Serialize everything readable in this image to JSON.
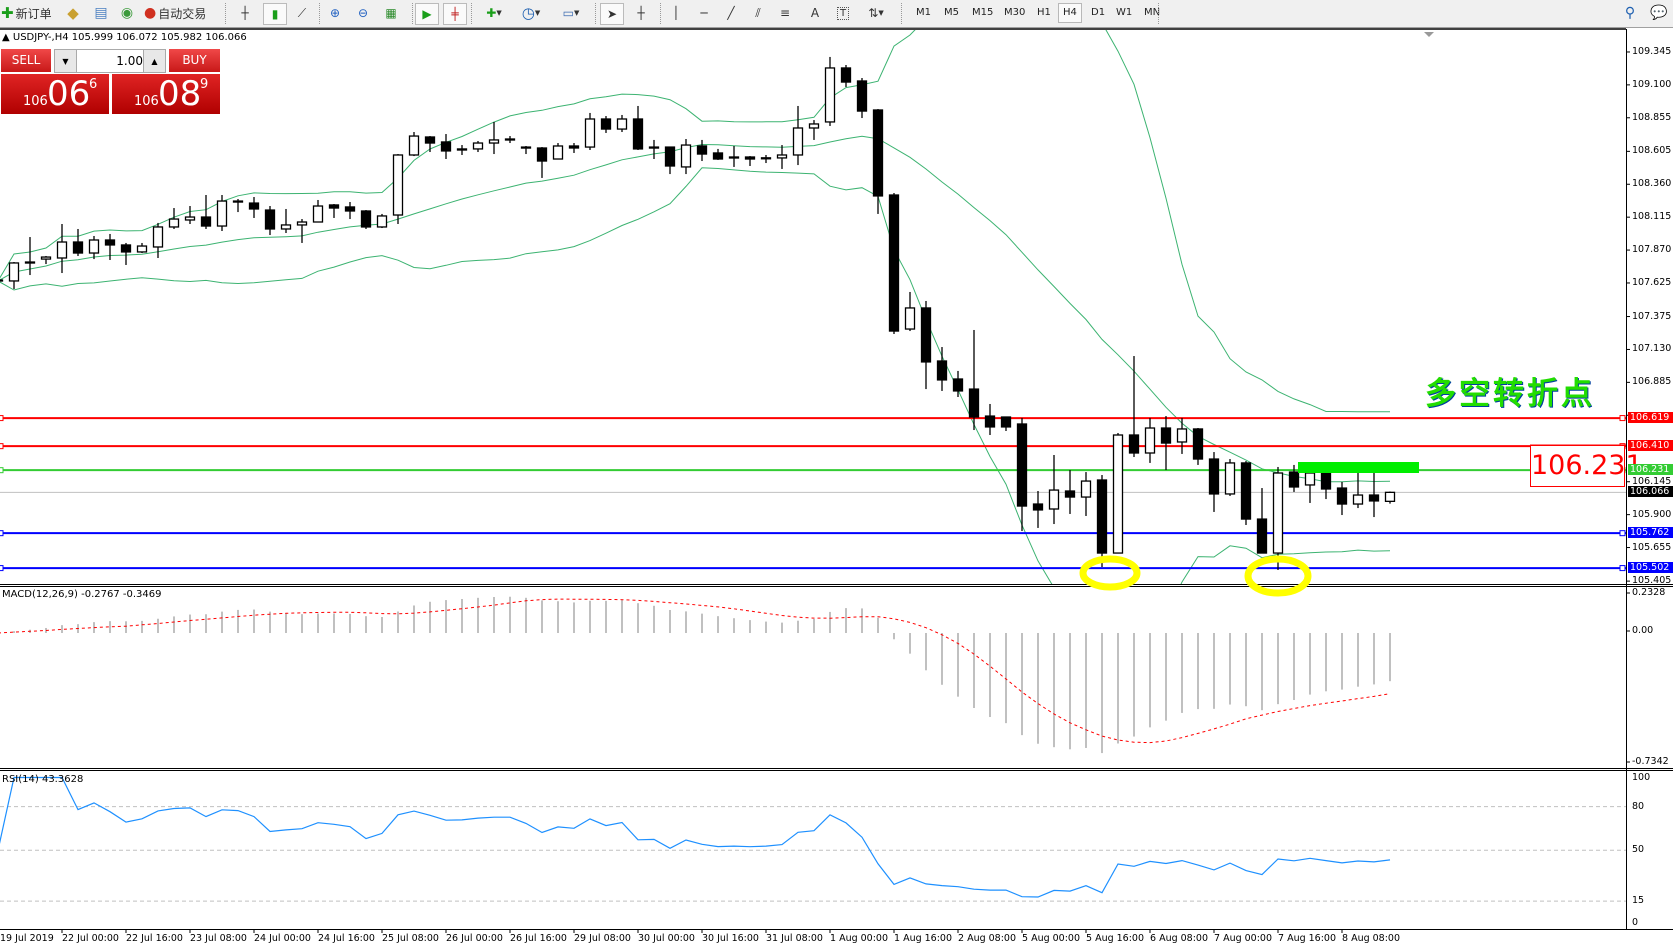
{
  "toolbar": {
    "new_order": "新订单",
    "auto_trading": "自动交易",
    "icons": [
      "new-order-icon",
      "market-watch-icon",
      "data-window-icon",
      "navigator-icon",
      "auto-trading-icon",
      "bar-chart-icon",
      "candlestick-icon",
      "line-chart-icon",
      "zoom-in-icon",
      "zoom-out-icon",
      "tile-windows-icon",
      "auto-scroll-icon",
      "chart-shift-icon",
      "indicators-icon",
      "periods-icon",
      "templates-icon",
      "cursor-icon",
      "crosshair-icon",
      "vertical-line-icon",
      "horizontal-line-icon",
      "trendline-icon",
      "fibo-icon",
      "fibo-fan-icon",
      "text-icon",
      "text-label-icon",
      "arrows-icon",
      "search-icon",
      "chat-icon"
    ],
    "text_tool": "A",
    "label_tool": "T",
    "timeframes": [
      "M1",
      "M5",
      "M15",
      "M30",
      "H1",
      "H4",
      "D1",
      "W1",
      "MN"
    ],
    "active_timeframe": "H4"
  },
  "chart": {
    "header": "▲ USDJPY-,H4  105.999 106.072 105.982 106.066",
    "one_click": {
      "sell": "SELL",
      "buy": "BUY",
      "lot": "1.00",
      "sell_small": "106",
      "sell_big": "06",
      "sell_sup": "6",
      "buy_small": "106",
      "buy_big": "08",
      "buy_sup": "9"
    },
    "annotation": "多空转折点",
    "label_text": "106.231",
    "price_ticks": [
      "109.345",
      "109.100",
      "108.855",
      "108.605",
      "108.360",
      "108.115",
      "107.870",
      "107.625",
      "107.375",
      "107.130",
      "106.885",
      "106.145",
      "105.900",
      "105.655",
      "105.405"
    ],
    "levels": [
      {
        "price": "106.619",
        "color": "#ff0000"
      },
      {
        "price": "106.410",
        "color": "#ff0000"
      },
      {
        "price": "106.231",
        "color": "#33cc33"
      },
      {
        "price": "105.762",
        "color": "#0000ff"
      },
      {
        "price": "105.502",
        "color": "#0000ff"
      }
    ],
    "bid": {
      "price": "106.066",
      "color": "#000000"
    },
    "time_labels": [
      "19 Jul 2019",
      "22 Jul 00:00",
      "22 Jul 16:00",
      "23 Jul 08:00",
      "24 Jul 00:00",
      "24 Jul 16:00",
      "25 Jul 08:00",
      "26 Jul 00:00",
      "26 Jul 16:00",
      "29 Jul 08:00",
      "30 Jul 00:00",
      "30 Jul 16:00",
      "31 Jul 08:00",
      "1 Aug 00:00",
      "1 Aug 16:00",
      "2 Aug 08:00",
      "5 Aug 00:00",
      "5 Aug 16:00",
      "6 Aug 08:00",
      "7 Aug 00:00",
      "7 Aug 16:00",
      "8 Aug 08:00"
    ],
    "macd": {
      "label": "MACD(12,26,9) -0.2767 -0.3469",
      "ticks": [
        "0.2328",
        "0.00",
        "-0.7342"
      ]
    },
    "rsi": {
      "label": "RSI(14) 43.3628",
      "ticks": [
        "100",
        "80",
        "50",
        "15",
        "0"
      ]
    },
    "colors": {
      "bands": "#3cb371",
      "macd_signal": "#ff0000",
      "macd_hist": "#c0c0c0",
      "rsi": "#1e90ff",
      "highlight_bar": "#00ee00",
      "circle": "#ffff00"
    }
  },
  "chart_data": {
    "type": "candlestick",
    "symbol": "USDJPY-",
    "timeframe": "H4",
    "ylim": [
      105.405,
      109.345
    ],
    "ohlc_order": [
      "open",
      "high",
      "low",
      "close"
    ],
    "candles": [
      [
        107.647,
        107.722,
        107.61,
        107.64
      ],
      [
        107.64,
        107.781,
        107.58,
        107.774
      ],
      [
        107.781,
        107.967,
        107.684,
        107.774
      ],
      [
        107.803,
        107.826,
        107.766,
        107.818
      ],
      [
        107.811,
        108.064,
        107.699,
        107.93
      ],
      [
        107.93,
        108.027,
        107.826,
        107.848
      ],
      [
        107.848,
        107.975,
        107.803,
        107.945
      ],
      [
        107.945,
        107.99,
        107.796,
        107.908
      ],
      [
        107.908,
        107.923,
        107.759,
        107.856
      ],
      [
        107.856,
        107.923,
        107.848,
        107.9
      ],
      [
        107.893,
        108.072,
        107.811,
        108.042
      ],
      [
        108.042,
        108.183,
        108.027,
        108.101
      ],
      [
        108.094,
        108.198,
        108.064,
        108.116
      ],
      [
        108.116,
        108.28,
        108.027,
        108.049
      ],
      [
        108.049,
        108.28,
        108.012,
        108.235
      ],
      [
        108.235,
        108.25,
        108.153,
        108.228
      ],
      [
        108.22,
        108.265,
        108.109,
        108.176
      ],
      [
        108.168,
        108.198,
        107.982,
        108.027
      ],
      [
        108.027,
        108.176,
        107.997,
        108.057
      ],
      [
        108.057,
        108.101,
        107.923,
        108.079
      ],
      [
        108.079,
        108.243,
        108.079,
        108.198
      ],
      [
        108.206,
        108.213,
        108.109,
        108.183
      ],
      [
        108.191,
        108.228,
        108.101,
        108.161
      ],
      [
        108.161,
        108.168,
        108.027,
        108.042
      ],
      [
        108.042,
        108.139,
        108.034,
        108.124
      ],
      [
        108.131,
        108.585,
        108.064,
        108.578
      ],
      [
        108.578,
        108.749,
        108.57,
        108.719
      ],
      [
        108.712,
        108.719,
        108.6,
        108.667
      ],
      [
        108.675,
        108.734,
        108.548,
        108.608
      ],
      [
        108.623,
        108.652,
        108.578,
        108.615
      ],
      [
        108.623,
        108.682,
        108.6,
        108.667
      ],
      [
        108.667,
        108.824,
        108.585,
        108.69
      ],
      [
        108.697,
        108.719,
        108.667,
        108.69
      ],
      [
        108.637,
        108.645,
        108.585,
        108.63
      ],
      [
        108.63,
        108.637,
        108.407,
        108.533
      ],
      [
        108.548,
        108.667,
        108.548,
        108.645
      ],
      [
        108.645,
        108.667,
        108.593,
        108.63
      ],
      [
        108.637,
        108.891,
        108.615,
        108.846
      ],
      [
        108.846,
        108.868,
        108.742,
        108.771
      ],
      [
        108.771,
        108.876,
        108.749,
        108.846
      ],
      [
        108.846,
        108.943,
        108.615,
        108.623
      ],
      [
        108.637,
        108.69,
        108.548,
        108.63
      ],
      [
        108.637,
        108.637,
        108.436,
        108.496
      ],
      [
        108.489,
        108.697,
        108.436,
        108.652
      ],
      [
        108.645,
        108.69,
        108.533,
        108.585
      ],
      [
        108.593,
        108.623,
        108.541,
        108.548
      ],
      [
        108.563,
        108.645,
        108.489,
        108.556
      ],
      [
        108.563,
        108.57,
        108.496,
        108.548
      ],
      [
        108.556,
        108.578,
        108.518,
        108.557
      ],
      [
        108.556,
        108.652,
        108.474,
        108.578
      ],
      [
        108.578,
        108.943,
        108.503,
        108.779
      ],
      [
        108.779,
        108.838,
        108.69,
        108.809
      ],
      [
        108.824,
        109.308,
        108.794,
        109.226
      ],
      [
        109.226,
        109.248,
        109.084,
        109.121
      ],
      [
        109.129,
        109.151,
        108.853,
        108.905
      ],
      [
        108.913,
        108.92,
        108.139,
        108.273
      ],
      [
        108.28,
        108.295,
        107.245,
        107.267
      ],
      [
        107.282,
        107.558,
        107.267,
        107.439
      ],
      [
        107.439,
        107.491,
        106.835,
        107.037
      ],
      [
        107.044,
        107.148,
        106.821,
        106.903
      ],
      [
        106.91,
        106.97,
        106.776,
        106.821
      ],
      [
        106.835,
        107.275,
        106.53,
        106.627
      ],
      [
        106.634,
        106.724,
        106.493,
        106.553
      ],
      [
        106.627,
        106.627,
        106.523,
        106.553
      ],
      [
        106.575,
        106.62,
        105.778,
        105.964
      ],
      [
        105.979,
        106.076,
        105.801,
        105.935
      ],
      [
        105.942,
        106.344,
        105.83,
        106.083
      ],
      [
        106.076,
        106.232,
        105.905,
        106.031
      ],
      [
        106.031,
        106.217,
        105.89,
        106.15
      ],
      [
        106.158,
        106.195,
        105.51,
        105.614
      ],
      [
        105.614,
        106.508,
        105.614,
        106.493
      ],
      [
        106.493,
        107.081,
        106.329,
        106.359
      ],
      [
        106.359,
        106.62,
        106.285,
        106.545
      ],
      [
        106.545,
        106.634,
        106.232,
        106.433
      ],
      [
        106.441,
        106.62,
        106.352,
        106.538
      ],
      [
        106.538,
        106.545,
        106.27,
        106.314
      ],
      [
        106.314,
        106.366,
        105.92,
        106.054
      ],
      [
        106.054,
        106.314,
        106.039,
        106.285
      ],
      [
        106.285,
        106.299,
        105.823,
        105.867
      ],
      [
        105.867,
        106.098,
        105.614,
        105.614
      ],
      [
        105.614,
        106.255,
        105.488,
        106.21
      ],
      [
        106.217,
        106.27,
        106.069,
        106.106
      ],
      [
        106.121,
        106.292,
        105.987,
        106.21
      ],
      [
        106.21,
        106.21,
        106.016,
        106.091
      ],
      [
        106.098,
        106.143,
        105.897,
        105.979
      ],
      [
        105.979,
        106.21,
        105.949,
        106.046
      ],
      [
        106.046,
        106.21,
        105.882,
        106.002
      ],
      [
        105.999,
        106.072,
        105.982,
        106.066
      ]
    ],
    "indicators": [
      "Bollinger Bands(20,2)",
      "MACD(12,26,9)",
      "RSI(14)"
    ],
    "rsi_levels": [
      80,
      50,
      15
    ],
    "macd_ylim": [
      -0.7342,
      0.2328
    ],
    "rsi_ylim": [
      0,
      100
    ]
  }
}
